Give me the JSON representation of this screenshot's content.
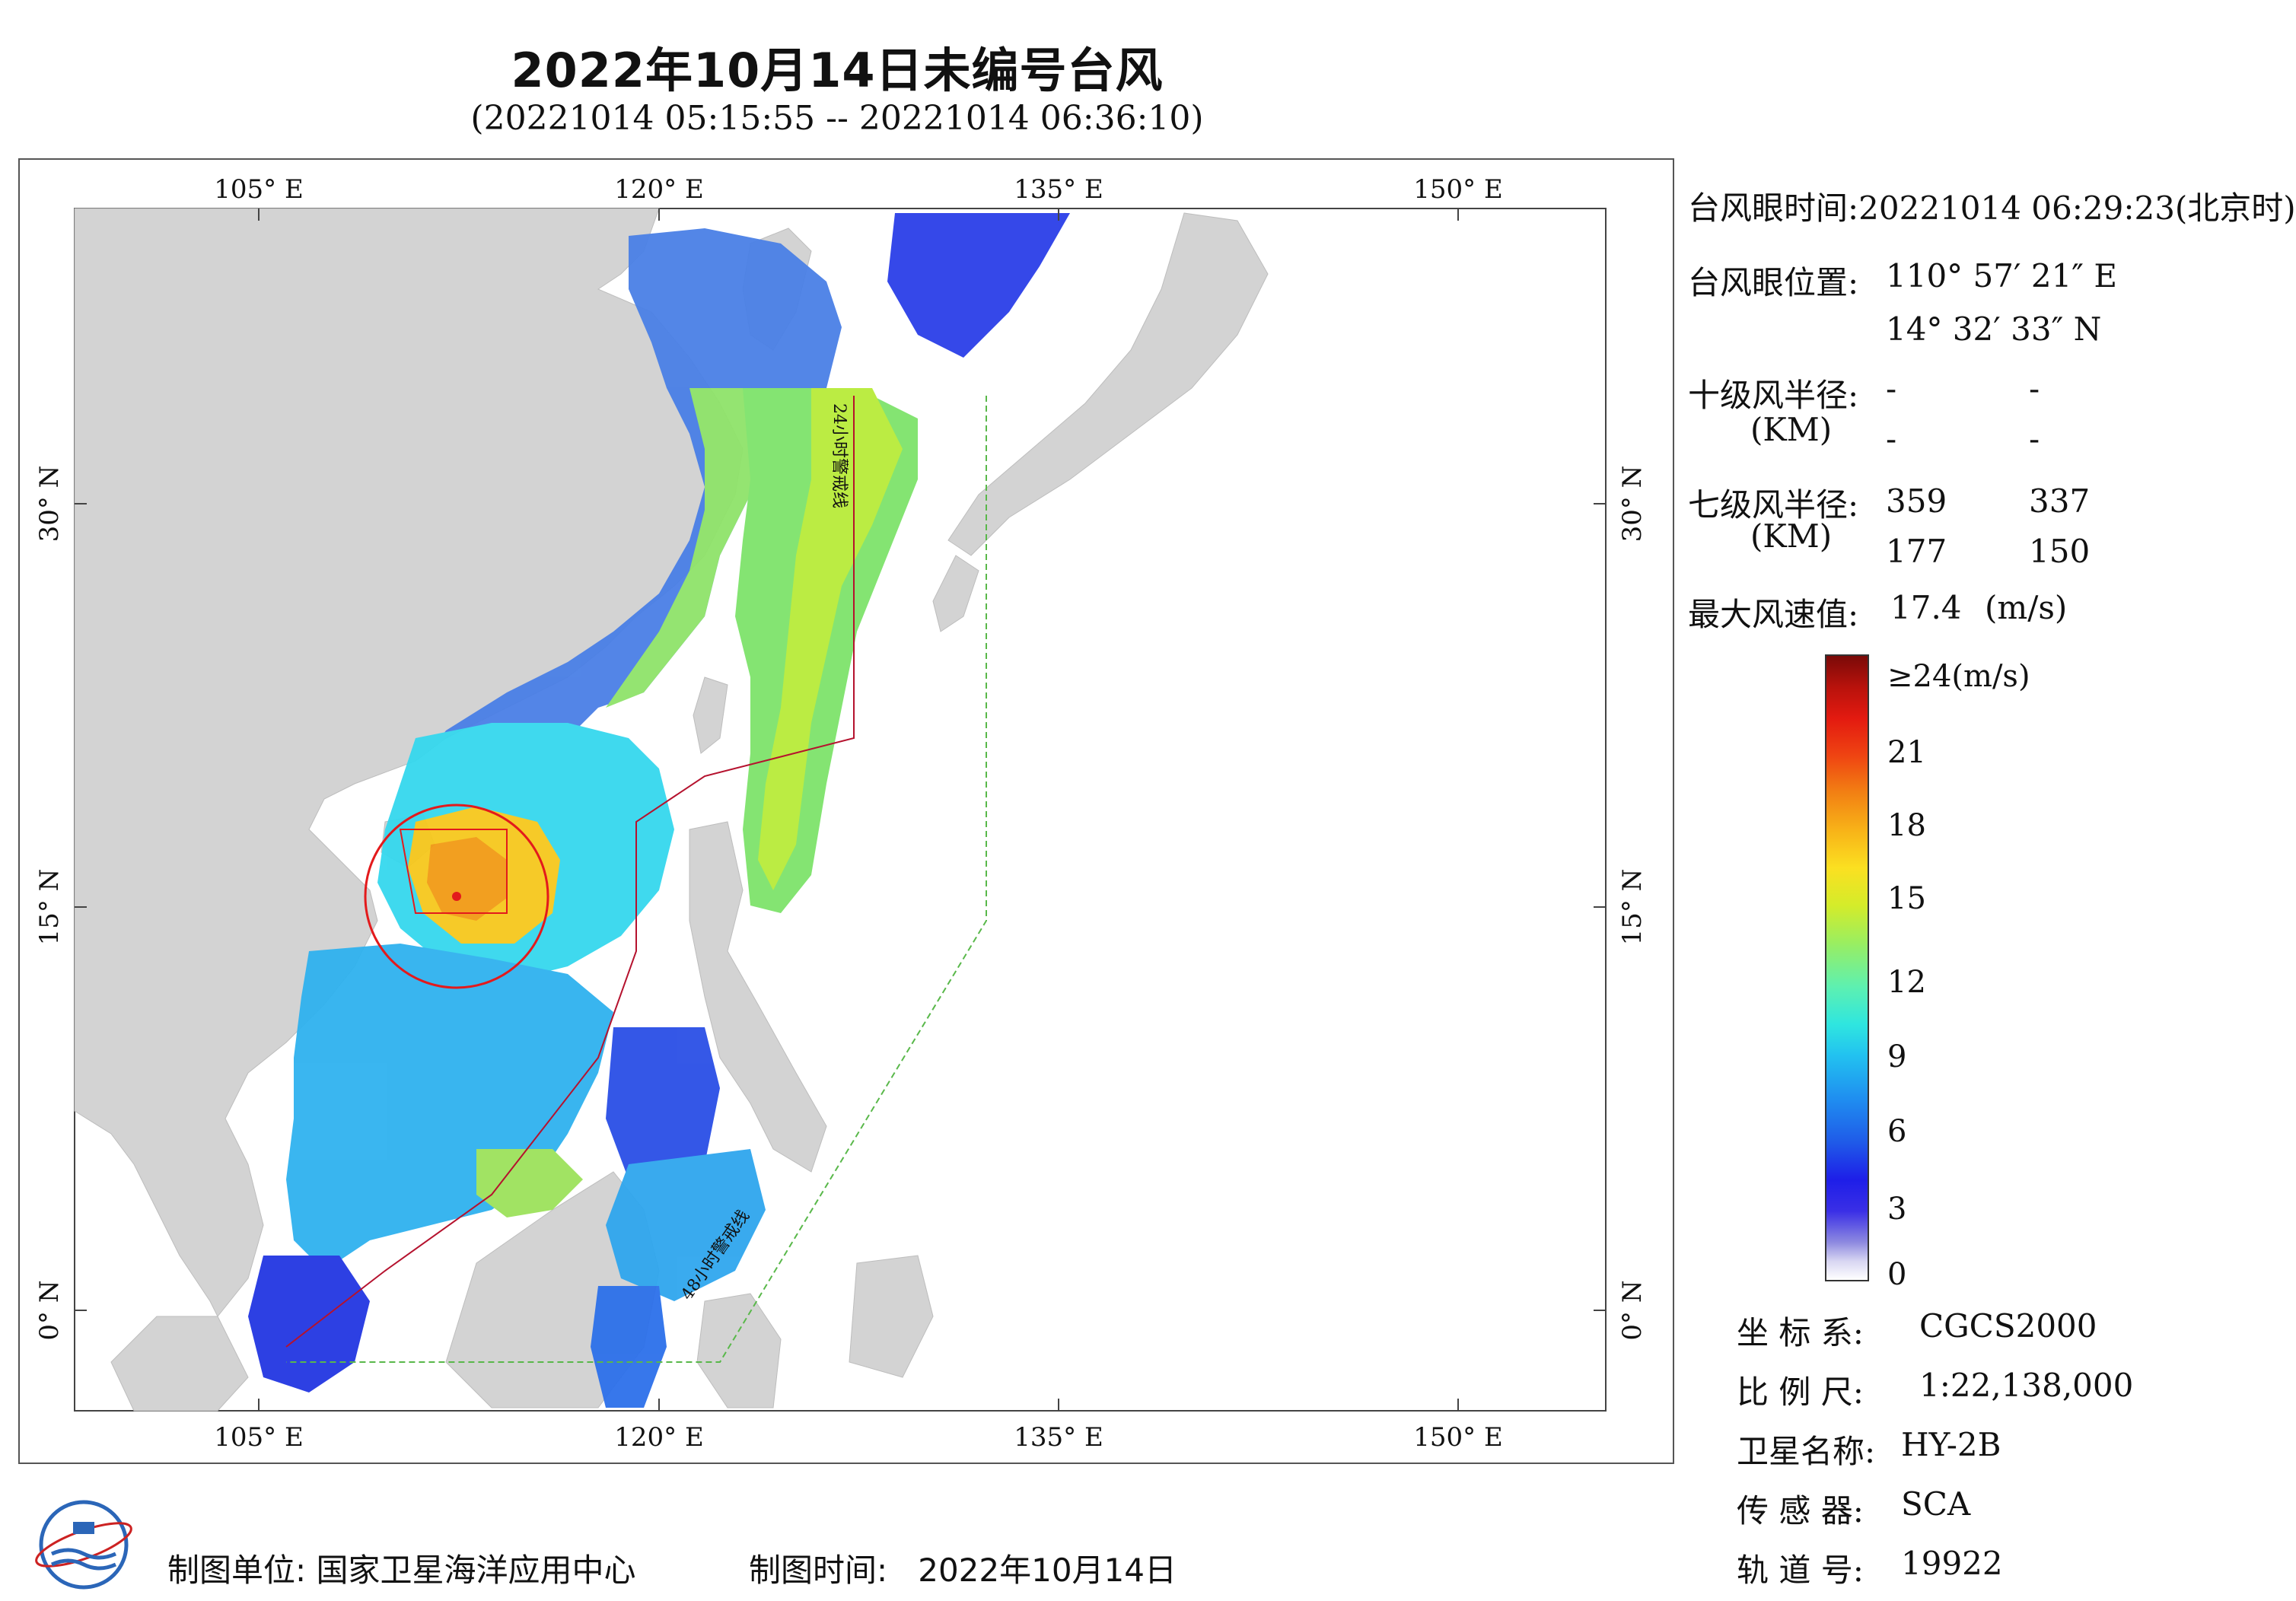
{
  "header": {
    "title": "2022年10月14日未编号台风",
    "subtitle": "(20221014 05:15:55 -- 20221014 06:36:10)"
  },
  "map": {
    "lon_labels_top": [
      "105° E",
      "120° E",
      "135° E",
      "150° E"
    ],
    "lon_labels_bottom": [
      "105° E",
      "120° E",
      "135° E",
      "150° E"
    ],
    "lat_labels_left": [
      "30° N",
      "15° N",
      "0° N"
    ],
    "lat_labels_right": [
      "30° N",
      "15° N",
      "0° N"
    ],
    "lines": {
      "line_24h": "24小时警戒线",
      "line_48h": "48小时警戒线"
    },
    "colors": {
      "land": "#d3d3d3",
      "ocean": "#ffffff",
      "eye_circle": "#e31a1c",
      "warning_24h": "#b5122e",
      "warning_48h": "#59b84a"
    }
  },
  "info": {
    "eye_time_label": "台风眼时间:",
    "eye_time_value": "20221014 06:29:23(北京时)",
    "eye_pos_label": "台风眼位置:",
    "eye_lon": "110° 57′ 21″ E",
    "eye_lat": "14° 32′ 33″ N",
    "r10_label": "十级风半径:",
    "r10_unit": "(KM)",
    "r10_values": [
      "-",
      "-",
      "-",
      "-"
    ],
    "r7_label": "七级风半径:",
    "r7_unit": "(KM)",
    "r7_values": [
      "359",
      "337",
      "177",
      "150"
    ],
    "max_wind_label": "最大风速值:",
    "max_wind_value": "17.4",
    "max_wind_unit": "(m/s)"
  },
  "colorbar": {
    "top_label": "≥24(m/s)",
    "ticks": [
      "21",
      "18",
      "15",
      "12",
      "9",
      "6",
      "3",
      "0"
    ]
  },
  "meta": {
    "crs_label": "坐 标 系:",
    "crs_value": "CGCS2000",
    "scale_label": "比 例 尺:",
    "scale_value": "1:22,138,000",
    "satellite_label": "卫星名称:",
    "satellite_value": "HY-2B",
    "sensor_label": "传 感 器:",
    "sensor_value": "SCA",
    "orbit_label": "轨 道 号:",
    "orbit_value": "19922"
  },
  "footer": {
    "org_label": "制图单位:",
    "org_value": "国家卫星海洋应用中心",
    "time_label": "制图时间:",
    "time_value": "2022年10月14日"
  }
}
